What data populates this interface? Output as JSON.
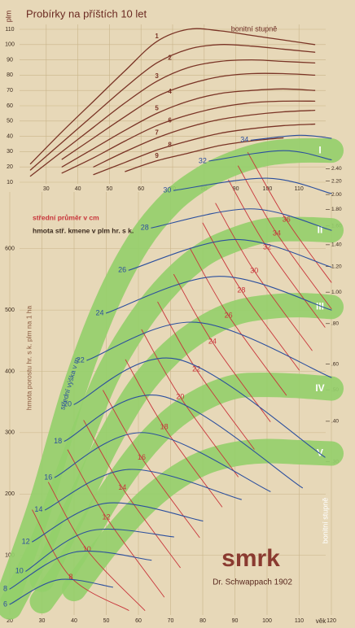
{
  "chart_data": [
    {
      "type": "line",
      "title": "Probírky na příštích 10 let",
      "y_label": "plm",
      "legend_title": "bonitní stupně",
      "color": "#7a3426",
      "grid": true,
      "x": [
        25,
        35,
        45,
        55,
        65,
        75,
        85,
        95,
        105,
        115
      ],
      "xlim": [
        20,
        120
      ],
      "xticks": [
        30,
        40,
        50,
        60,
        70,
        80,
        90,
        100,
        110
      ],
      "ylim": [
        10,
        110
      ],
      "yticks": [
        10,
        20,
        30,
        40,
        50,
        60,
        70,
        80,
        90,
        100,
        110
      ],
      "series": [
        {
          "name": "1",
          "values": [
            22,
            43,
            63,
            83,
            102,
            110,
            109,
            106,
            103,
            100
          ]
        },
        {
          "name": "2",
          "values": [
            18,
            36,
            54,
            72,
            88,
            97,
            100,
            99,
            97,
            95
          ]
        },
        {
          "name": "3",
          "values": [
            14,
            30,
            46,
            62,
            76,
            85,
            89,
            90,
            89,
            88
          ]
        },
        {
          "name": "4",
          "values": [
            null,
            25,
            39,
            53,
            66,
            74,
            79,
            81,
            81,
            80
          ]
        },
        {
          "name": "5",
          "values": [
            null,
            20,
            32,
            44,
            55,
            63,
            68,
            70,
            71,
            70
          ]
        },
        {
          "name": "6",
          "values": [
            null,
            16,
            26,
            37,
            47,
            54,
            59,
            62,
            63,
            63
          ]
        },
        {
          "name": "7",
          "values": [
            null,
            null,
            20,
            30,
            39,
            46,
            51,
            54,
            56,
            57
          ]
        },
        {
          "name": "8",
          "values": [
            null,
            null,
            15,
            23,
            31,
            37,
            42,
            45,
            47,
            48
          ]
        },
        {
          "name": "9",
          "values": [
            null,
            null,
            null,
            17,
            24,
            29,
            34,
            37,
            39,
            null
          ]
        }
      ]
    },
    {
      "type": "nomogram",
      "title": "smrk",
      "subtitle": "Dr. Schwappach 1902",
      "x_label": "věk",
      "y_label": "hmota porostu hr. s k. plm na 1 ha",
      "y2_label": "hmota stř. kmene v plm hr. s k.",
      "grid": true,
      "xlim": [
        20,
        120
      ],
      "xticks": [
        20,
        30,
        40,
        50,
        60,
        70,
        80,
        90,
        100,
        110,
        120
      ],
      "ylim": [
        0,
        800
      ],
      "yticks": [
        100,
        200,
        300,
        400,
        500,
        600
      ],
      "y2lim": [
        0.1,
        3.25
      ],
      "y2scale": "log",
      "y2ticks": [
        {
          "value": 2.4,
          "label": "2.40"
        },
        {
          "value": 2.2,
          "label": "2.20"
        },
        {
          "value": 2,
          "label": "2.00"
        },
        {
          "value": 1.8,
          "label": "1.80"
        },
        {
          "value": 1.6,
          "label": "1.60"
        },
        {
          "value": 1.4,
          "label": "1.40"
        },
        {
          "value": 1.2,
          "label": "1.20"
        },
        {
          "value": 1,
          "label": "1.00"
        },
        {
          "value": 0.8,
          "label": ".80"
        },
        {
          "value": 0.6,
          "label": ".60"
        },
        {
          "value": 0.5,
          "label": ".50"
        },
        {
          "value": 0.4,
          "label": ".40"
        },
        {
          "value": 0.3,
          "label": ".30"
        }
      ],
      "bands": {
        "name": "bonitní stupně",
        "color": "#93cf6a",
        "x": [
          20,
          30,
          40,
          50,
          60,
          70,
          80,
          90,
          100,
          110,
          120
        ],
        "series": [
          {
            "name": "I",
            "values": [
              40,
              190,
              370,
              510,
              610,
              675,
              715,
              740,
              755,
              760,
              760
            ]
          },
          {
            "name": "II",
            "values": [
              15,
              120,
              260,
              390,
              480,
              545,
              590,
              615,
              630,
              632,
              630
            ]
          },
          {
            "name": "III",
            "values": [
              null,
              60,
              170,
              280,
              370,
              430,
              470,
              495,
              505,
              508,
              505
            ]
          },
          {
            "name": "IV",
            "values": [
              null,
              25,
              100,
              190,
              265,
              320,
              355,
              375,
              378,
              376,
              372
            ]
          },
          {
            "name": "V",
            "values": [
              null,
              null,
              45,
              115,
              175,
              220,
              250,
              265,
              270,
              268,
              266
            ]
          }
        ]
      },
      "height_curves": {
        "name": "střední výška v m",
        "color": "#2b4f9e",
        "series": [
          {
            "name": 6,
            "x": [
              20,
              35,
              52
            ],
            "values": [
              20,
              60,
              48
            ]
          },
          {
            "name": 8,
            "x": [
              20,
              40,
              64
            ],
            "values": [
              45,
              105,
              92
            ]
          },
          {
            "name": 10,
            "x": [
              25,
              45,
              71
            ],
            "values": [
              74,
              140,
              130
            ]
          },
          {
            "name": 12,
            "x": [
              27,
              50,
              80
            ],
            "values": [
              122,
              185,
              156
            ]
          },
          {
            "name": 14,
            "x": [
              31,
              57,
              92
            ],
            "values": [
              174,
              240,
              191
            ]
          },
          {
            "name": 16,
            "x": [
              34,
              62,
              101
            ],
            "values": [
              227,
              300,
              204
            ]
          },
          {
            "name": 18,
            "x": [
              37,
              67,
              111
            ],
            "values": [
              286,
              360,
              210
            ]
          },
          {
            "name": 20,
            "x": [
              40,
              72,
              118
            ],
            "values": [
              346,
              420,
              260
            ]
          },
          {
            "name": 22,
            "x": [
              44,
              78,
              120
            ],
            "values": [
              418,
              480,
              390
            ]
          },
          {
            "name": 24,
            "x": [
              50,
              85,
              120
            ],
            "values": [
              495,
              555,
              500
            ]
          },
          {
            "name": 26,
            "x": [
              57,
              90,
              120
            ],
            "values": [
              565,
              615,
              570
            ]
          },
          {
            "name": 28,
            "x": [
              64,
              95,
              120
            ],
            "values": [
              634,
              665,
              630
            ]
          },
          {
            "name": 30,
            "x": [
              71,
              100,
              120
            ],
            "values": [
              695,
              715,
              690
            ]
          },
          {
            "name": 32,
            "x": [
              82,
              105,
              120
            ],
            "values": [
              743,
              760,
              745
            ]
          },
          {
            "name": 34,
            "x": [
              95,
              110,
              120
            ],
            "values": [
              777,
              785,
              780
            ]
          }
        ]
      },
      "diameter_curves": {
        "name": "střední průměr v cm",
        "color": "#c8343a",
        "series": [
          {
            "name": 8,
            "x": [
              27,
              39,
              57
            ],
            "values": [
              174,
              64,
              10
            ]
          },
          {
            "name": 10,
            "x": [
              32,
              44,
              62
            ],
            "values": [
              219,
              109,
              10
            ]
          },
          {
            "name": 12,
            "x": [
              38,
              50,
              68
            ],
            "values": [
              272,
              162,
              32
            ]
          },
          {
            "name": 14,
            "x": [
              43,
              55,
              73
            ],
            "values": [
              320,
              210,
              80
            ]
          },
          {
            "name": 16,
            "x": [
              49,
              61,
              79
            ],
            "values": [
              369,
              259,
              129
            ]
          },
          {
            "name": 18,
            "x": [
              56,
              68,
              86
            ],
            "values": [
              419,
              309,
              179
            ]
          },
          {
            "name": 20,
            "x": [
              61,
              73,
              91
            ],
            "values": [
              468,
              358,
              228
            ]
          },
          {
            "name": 22,
            "x": [
              66,
              78,
              96
            ],
            "values": [
              513,
              403,
              273
            ]
          },
          {
            "name": 24,
            "x": [
              71,
              83,
              101
            ],
            "values": [
              558,
              448,
              318
            ]
          },
          {
            "name": 26,
            "x": [
              76,
              88,
              106
            ],
            "values": [
              601,
              491,
              361
            ]
          },
          {
            "name": 28,
            "x": [
              80,
              92,
              110
            ],
            "values": [
              642,
              532,
              402
            ]
          },
          {
            "name": 30,
            "x": [
              84,
              96,
              114
            ],
            "values": [
              674,
              564,
              434
            ]
          },
          {
            "name": 32,
            "x": [
              88,
              100,
              118
            ],
            "values": [
              712,
              602,
              472
            ]
          },
          {
            "name": 34,
            "x": [
              91,
              103,
              120
            ],
            "values": [
              735,
              625,
              502
            ]
          },
          {
            "name": 36,
            "x": [
              94,
              106,
              120
            ],
            "values": [
              757,
              647,
              545
            ]
          }
        ]
      }
    }
  ]
}
